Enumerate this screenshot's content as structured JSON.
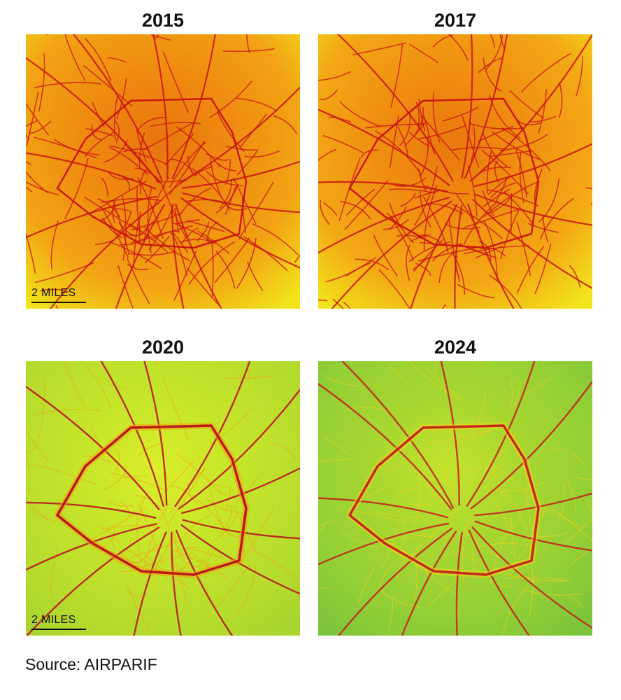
{
  "panels": [
    {
      "year": "2015",
      "scale_label": "2 MILES",
      "bg": [
        "#e8740e",
        "#ef8a10",
        "#f2a414",
        "#f1e41b"
      ],
      "road": "#c8140f",
      "road_light": "#d02a12",
      "level": "high"
    },
    {
      "year": "2017",
      "scale_label": "",
      "bg": [
        "#e9780e",
        "#f08e11",
        "#f3a815",
        "#f2e51b"
      ],
      "road": "#c8140f",
      "road_light": "#d02a12",
      "level": "high"
    },
    {
      "year": "2020",
      "scale_label": "2 MILES",
      "bg": [
        "#dbee2a",
        "#c7e62a",
        "#b9dd2c",
        "#a9d52f"
      ],
      "road": "#b8101a",
      "road_light": "#f0a012",
      "level": "medium"
    },
    {
      "year": "2024",
      "scale_label": "",
      "bg": [
        "#c3e32b",
        "#a9d730",
        "#94cf35",
        "#7cc43c"
      ],
      "road": "#c3201a",
      "road_light": "#f2d41c",
      "level": "low"
    }
  ],
  "source": "Source: AIRPARIF"
}
